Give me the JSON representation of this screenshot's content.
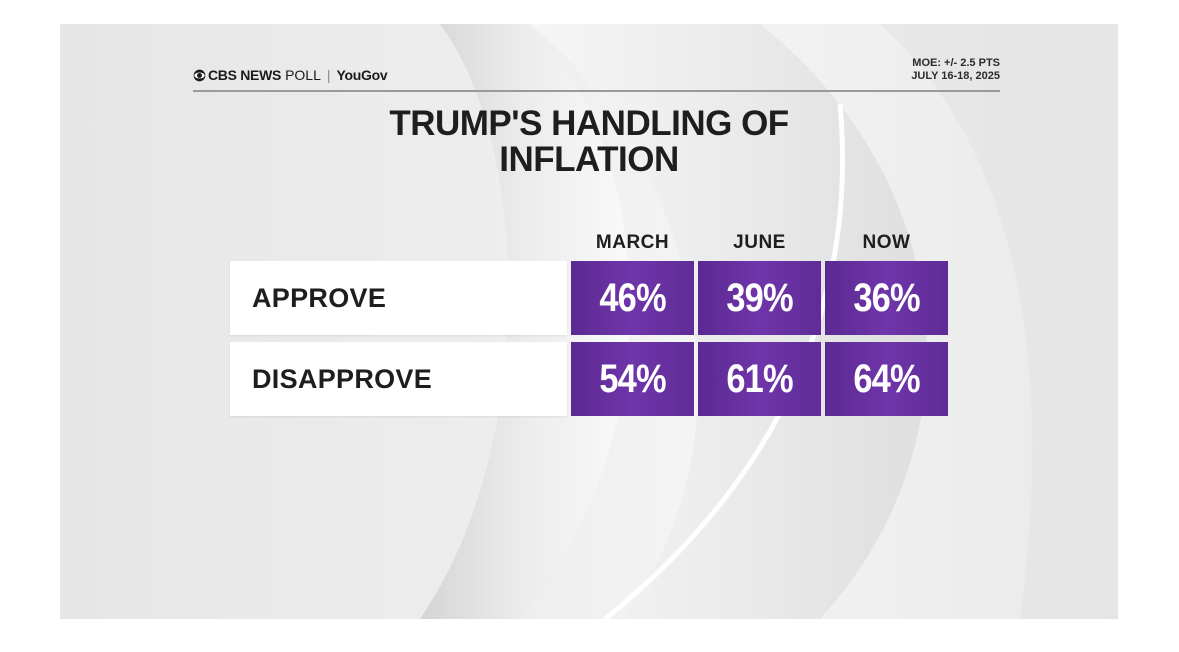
{
  "header": {
    "brand_cbs": "CBS NEWS",
    "brand_poll": "POLL",
    "brand_separator": "|",
    "brand_partner": "YouGov",
    "moe": "MOE: +/- 2.5 PTS",
    "dates": "JULY 16-18, 2025"
  },
  "icons": {
    "cbs_eye": "cbs-eye-icon"
  },
  "colors": {
    "cell_purple": "#6a32a3",
    "label_bg": "#ffffff",
    "text_dark": "#1e1e1e"
  },
  "chart_data": {
    "type": "table",
    "title_line1": "TRUMP'S HANDLING OF",
    "title_line2": "INFLATION",
    "columns": [
      "MARCH",
      "JUNE",
      "NOW"
    ],
    "rows": [
      {
        "label": "APPROVE",
        "values": [
          "46%",
          "39%",
          "36%"
        ]
      },
      {
        "label": "DISAPPROVE",
        "values": [
          "54%",
          "61%",
          "64%"
        ]
      }
    ],
    "series": [
      {
        "name": "APPROVE",
        "values": [
          46,
          39,
          36
        ]
      },
      {
        "name": "DISAPPROVE",
        "values": [
          54,
          61,
          64
        ]
      }
    ],
    "unit": "%"
  }
}
